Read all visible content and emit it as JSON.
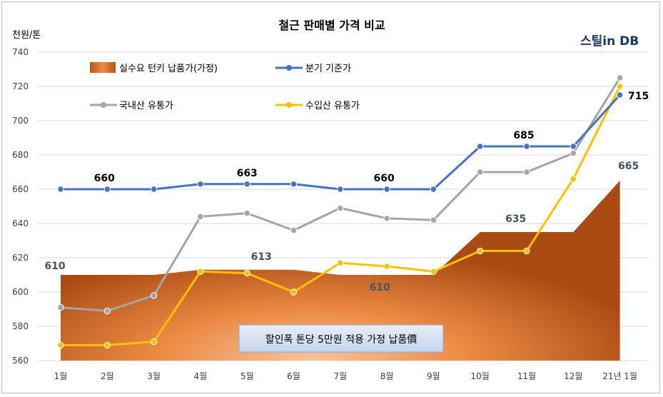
{
  "chart_data": {
    "type": "line",
    "title": "철근 판매별 가격 비교",
    "ylabel": "천원/톤",
    "brand": "스틸in DB",
    "ylim": [
      560,
      740
    ],
    "yticks": [
      560,
      580,
      600,
      620,
      640,
      660,
      680,
      700,
      720,
      740
    ],
    "categories": [
      "1월",
      "2월",
      "3월",
      "4월",
      "5월",
      "6월",
      "7월",
      "8월",
      "9월",
      "10월",
      "11월",
      "12월",
      "21년 1월"
    ],
    "grid": true,
    "legend_position": "top-left",
    "series": [
      {
        "name": "실수요 턴키 납품가(가정)",
        "kind": "area",
        "values": [
          610,
          610,
          610,
          613,
          613,
          613,
          610,
          610,
          610,
          635,
          635,
          635,
          665
        ],
        "labels": [
          {
            "index": 0,
            "text": "610"
          },
          {
            "index": 4,
            "text": "613"
          },
          {
            "index": 7,
            "text": "610"
          },
          {
            "index": 9,
            "text": "635"
          },
          {
            "index": 12,
            "text": "665"
          }
        ]
      },
      {
        "name": "분기 기준가",
        "kind": "line",
        "color": "#4472c4",
        "values": [
          660,
          660,
          660,
          663,
          663,
          663,
          660,
          660,
          660,
          685,
          685,
          685,
          715
        ],
        "labels": [
          {
            "index": 1,
            "text": "660"
          },
          {
            "index": 4,
            "text": "663"
          },
          {
            "index": 7,
            "text": "660"
          },
          {
            "index": 10,
            "text": "685"
          },
          {
            "index": 12,
            "text": "715"
          }
        ]
      },
      {
        "name": "국내산 유통가",
        "kind": "line",
        "color": "#a5a5a5",
        "values": [
          591,
          589,
          598,
          644,
          646,
          636,
          649,
          643,
          642,
          670,
          670,
          681,
          725
        ],
        "labels": []
      },
      {
        "name": "수입산 유통가",
        "kind": "line",
        "color": "#ffc000",
        "values": [
          569,
          569,
          571,
          612,
          611,
          600,
          617,
          615,
          612,
          624,
          624,
          666,
          720
        ],
        "labels": []
      }
    ],
    "annotation": "할인폭 톤당 5만원 적용 가정 납품價"
  }
}
